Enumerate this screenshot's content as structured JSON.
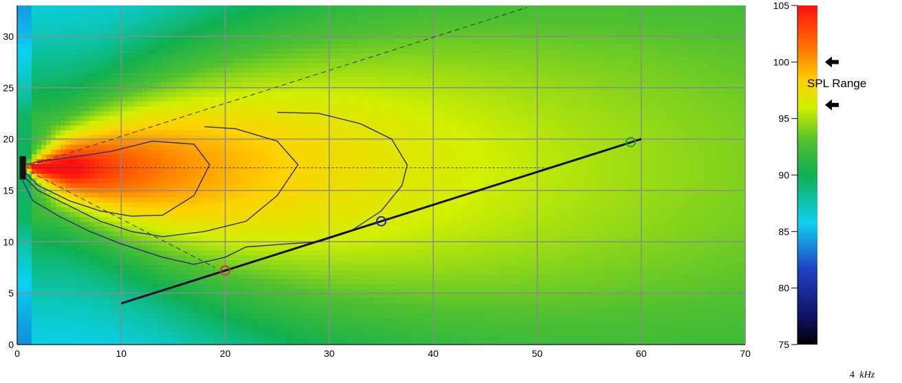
{
  "chart_data": {
    "type": "heatmap",
    "title": "",
    "xlabel": "",
    "ylabel": "",
    "xlim": [
      0,
      70
    ],
    "ylim": [
      0,
      33
    ],
    "x_ticks": [
      "0",
      "10",
      "20",
      "30",
      "40",
      "50",
      "60",
      "70"
    ],
    "y_ticks": [
      "0",
      "5",
      "10",
      "15",
      "20",
      "25",
      "30"
    ],
    "grid": true,
    "source": {
      "x": 0.5,
      "y": 17.2
    },
    "contours": [
      [
        [
          0.5,
          17
        ],
        [
          2,
          15.5
        ],
        [
          5,
          14
        ],
        [
          8,
          13
        ],
        [
          11,
          12.5
        ],
        [
          14,
          12.6
        ],
        [
          17,
          14.5
        ],
        [
          18.5,
          17.5
        ],
        [
          17,
          19.5
        ],
        [
          13,
          19.8
        ],
        [
          9,
          18.8
        ],
        [
          5,
          18.2
        ],
        [
          2,
          17.8
        ],
        [
          0.5,
          17.4
        ]
      ],
      [
        [
          0.5,
          16.5
        ],
        [
          2,
          15
        ],
        [
          5,
          13.5
        ],
        [
          8,
          12
        ],
        [
          11,
          11
        ],
        [
          14,
          10.5
        ],
        [
          18,
          11
        ],
        [
          22,
          12
        ],
        [
          25,
          14.5
        ],
        [
          27,
          17.5
        ],
        [
          25,
          19.8
        ],
        [
          21,
          21
        ],
        [
          18,
          21.2
        ]
      ],
      [
        [
          0.5,
          16
        ],
        [
          1.5,
          14
        ],
        [
          4,
          12.5
        ],
        [
          7,
          11
        ],
        [
          10,
          9.8
        ],
        [
          14,
          8.5
        ],
        [
          17,
          7.8
        ],
        [
          20,
          8.5
        ],
        [
          22,
          9.5
        ],
        [
          26,
          9.8
        ],
        [
          29,
          10
        ],
        [
          32,
          11
        ],
        [
          35,
          13
        ],
        [
          37,
          15.5
        ],
        [
          37.5,
          17.5
        ],
        [
          36,
          20
        ],
        [
          33,
          21.5
        ],
        [
          29,
          22.5
        ],
        [
          25,
          22.6
        ]
      ]
    ],
    "axis_line": {
      "y": 17.2,
      "x_end": 51
    },
    "coverage_upper": [
      [
        0.5,
        17.2
      ],
      [
        49,
        32.8
      ]
    ],
    "coverage_lower": [
      [
        0.5,
        17.2
      ],
      [
        19,
        7.5
      ]
    ],
    "listener_line": [
      [
        10,
        4
      ],
      [
        60,
        20
      ]
    ],
    "markers": [
      {
        "x": 20,
        "y": 7.2,
        "color": "#e03030"
      },
      {
        "x": 35,
        "y": 12,
        "color": "#2020d0"
      },
      {
        "x": 59,
        "y": 19.7,
        "color": "#22a022"
      }
    ],
    "colorbar": {
      "min": 75,
      "max": 105,
      "ticks": [
        "75",
        "80",
        "85",
        "90",
        "95",
        "100",
        "105"
      ],
      "range_arrows": [
        100,
        96.2
      ],
      "range_label": "SPL Range"
    },
    "frequency": {
      "value": "4",
      "unit": "kHz"
    }
  }
}
